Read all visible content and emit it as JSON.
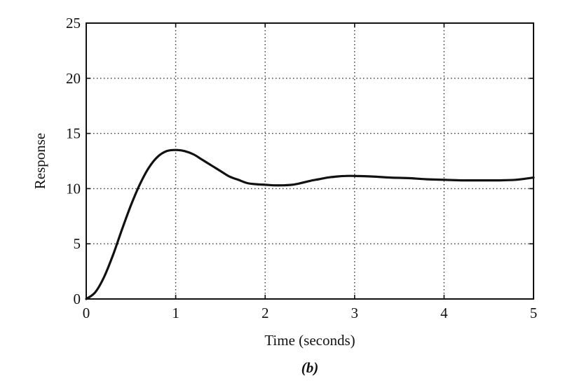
{
  "chart_data": {
    "type": "line",
    "title": "",
    "xlabel": "Time (seconds)",
    "ylabel": "Response",
    "caption": "(b)",
    "xlim": [
      0,
      5
    ],
    "ylim": [
      0,
      25
    ],
    "xticks": [
      0,
      1,
      2,
      3,
      4,
      5
    ],
    "yticks": [
      0,
      5,
      10,
      15,
      20,
      25
    ],
    "xtick_labels": [
      "0",
      "1",
      "2",
      "3",
      "4",
      "5"
    ],
    "ytick_labels": [
      "0",
      "5",
      "10",
      "15",
      "20",
      "25"
    ],
    "grid": true,
    "series": [
      {
        "x": [
          0,
          0.1,
          0.2,
          0.3,
          0.4,
          0.5,
          0.6,
          0.7,
          0.8,
          0.9,
          1.0,
          1.1,
          1.2,
          1.3,
          1.4,
          1.5,
          1.6,
          1.7,
          1.8,
          1.9,
          2.0,
          2.1,
          2.2,
          2.3,
          2.4,
          2.5,
          2.6,
          2.7,
          2.8,
          2.9,
          3.0,
          3.2,
          3.4,
          3.6,
          3.8,
          4.0,
          4.2,
          4.4,
          4.6,
          4.8,
          5.0
        ],
        "y": [
          0,
          0.6,
          2.0,
          4.0,
          6.3,
          8.5,
          10.4,
          11.9,
          12.9,
          13.4,
          13.5,
          13.4,
          13.1,
          12.6,
          12.1,
          11.6,
          11.1,
          10.8,
          10.5,
          10.4,
          10.35,
          10.3,
          10.3,
          10.35,
          10.5,
          10.7,
          10.85,
          11.0,
          11.1,
          11.15,
          11.15,
          11.1,
          11.0,
          10.95,
          10.85,
          10.8,
          10.75,
          10.75,
          10.75,
          10.8,
          11.0
        ]
      }
    ]
  }
}
